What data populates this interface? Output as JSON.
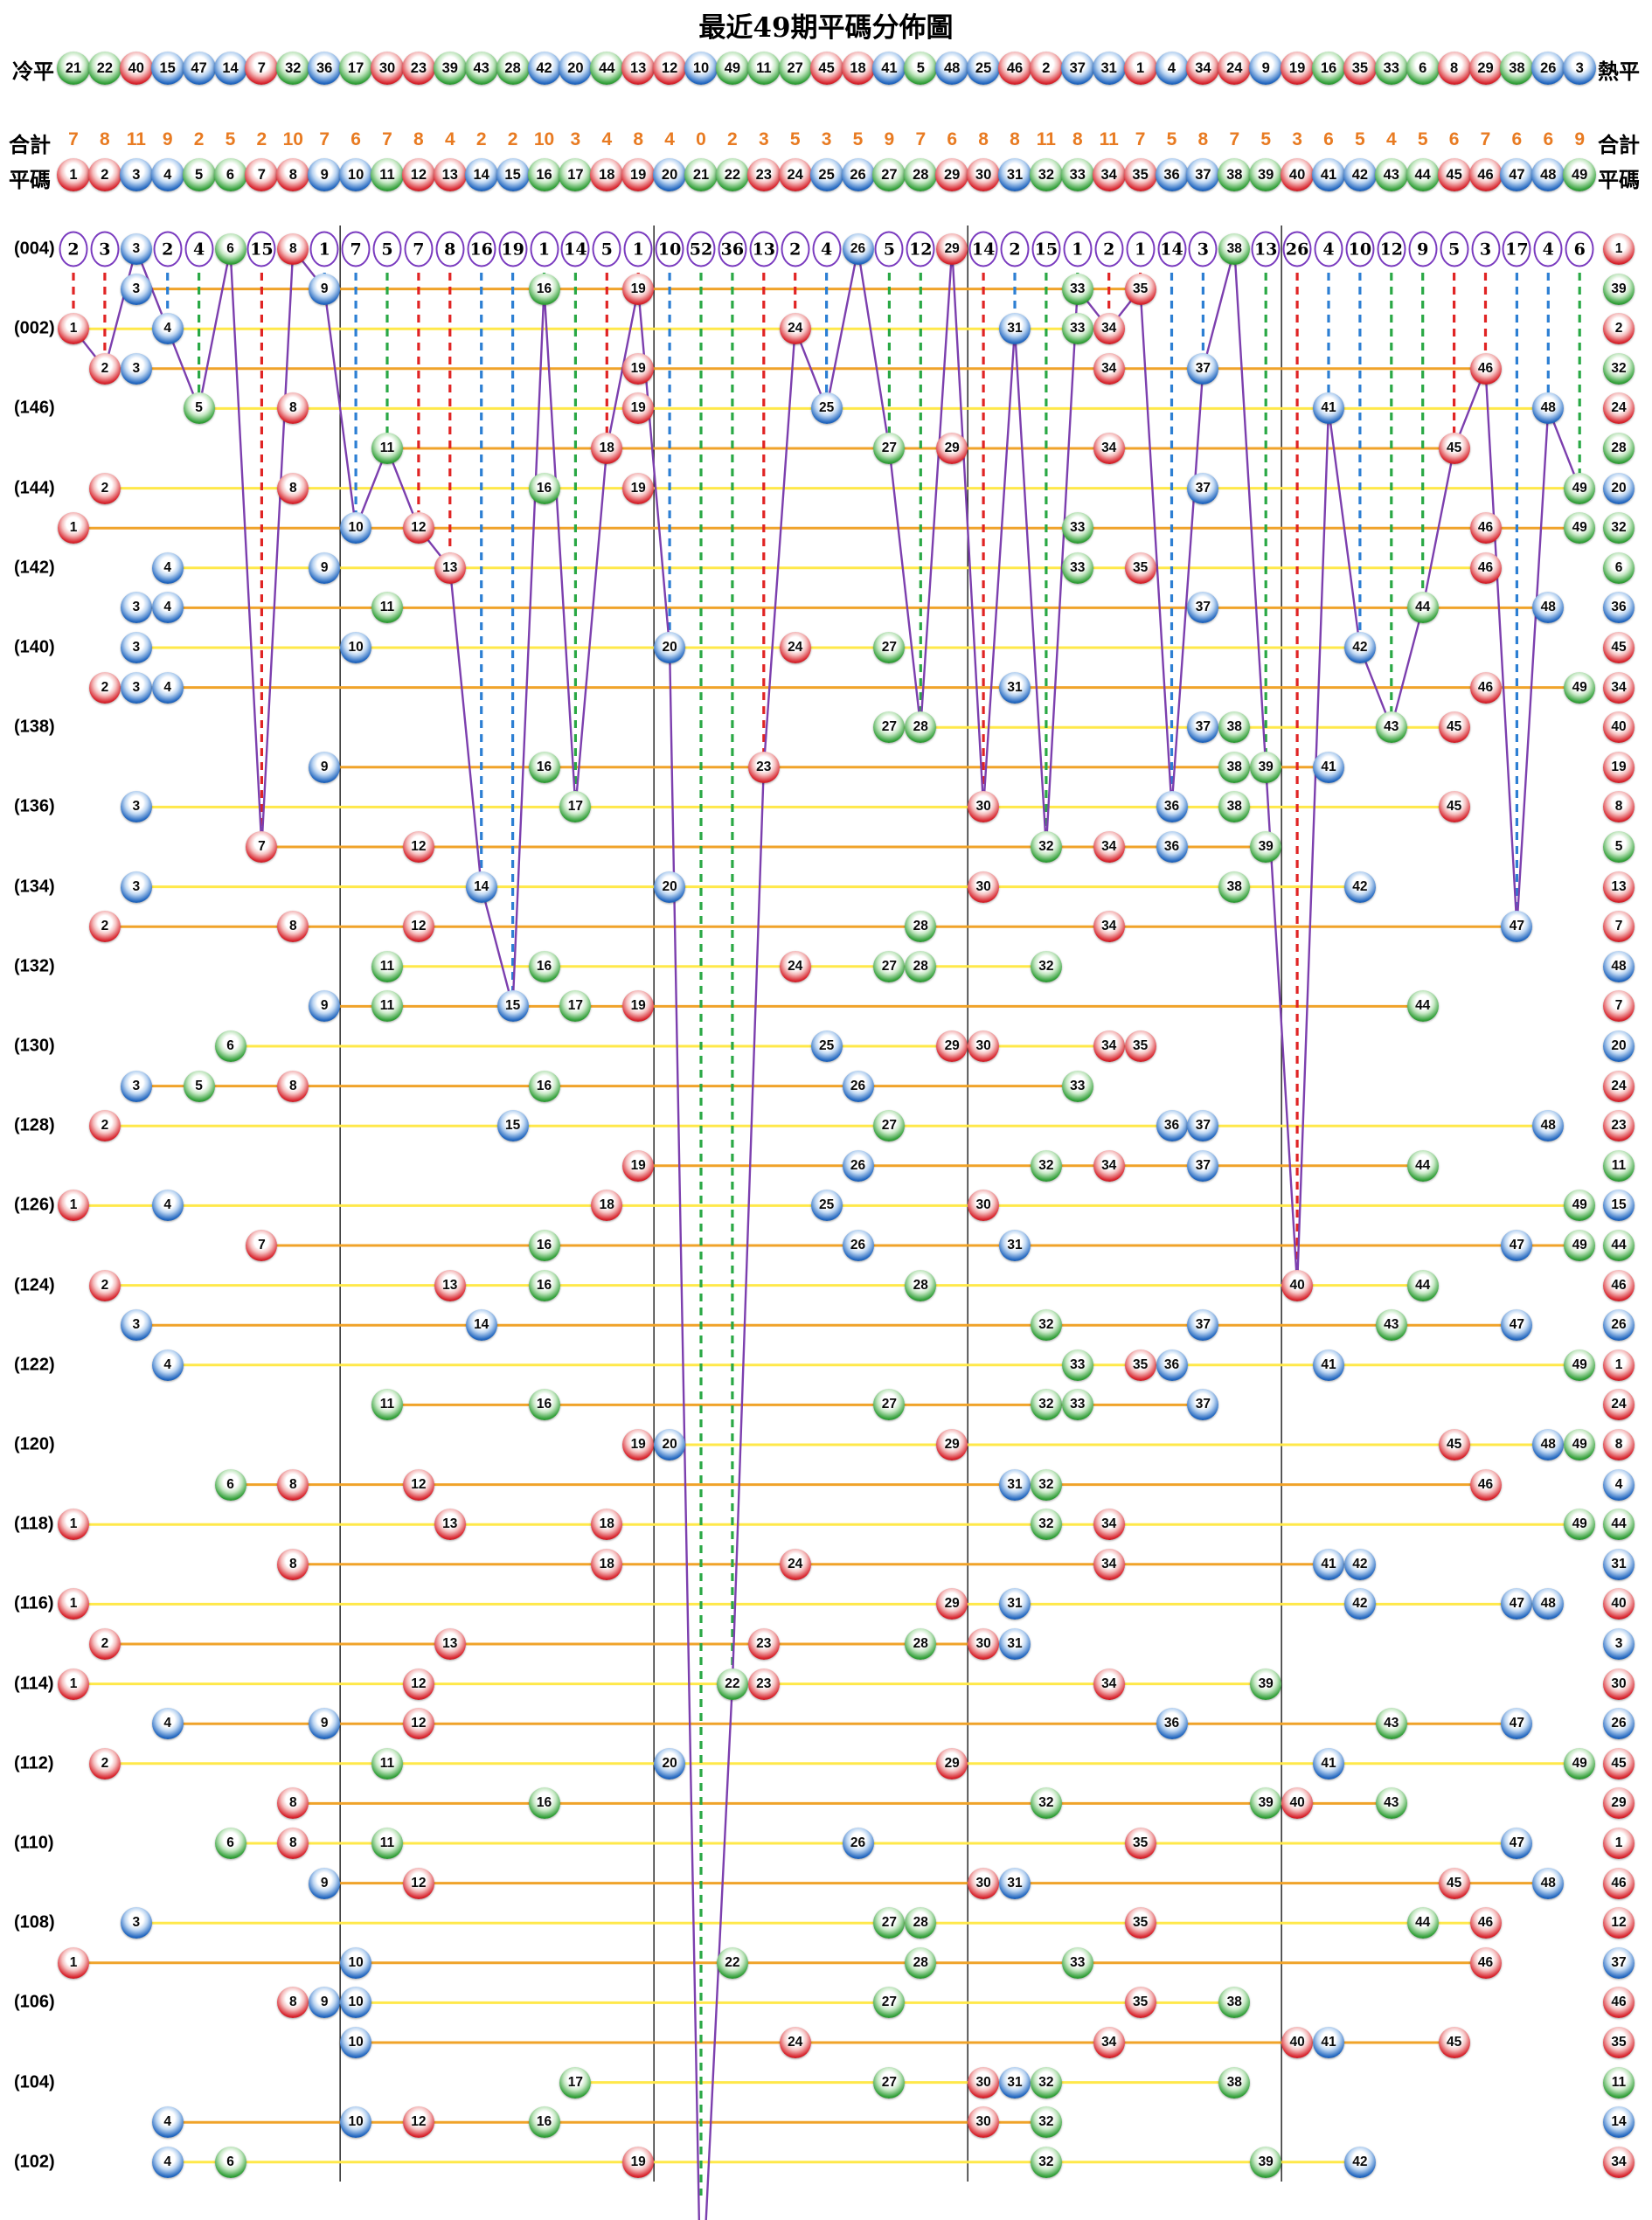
{
  "title": "最近49期平碼分佈圖",
  "header": {
    "cold_label": "冷平",
    "hot_label": "熱平",
    "total_label_left": "合計",
    "total_label_right": "合計",
    "ping_label_left": "平碼",
    "ping_label_right": "平碼"
  },
  "chart_data": {
    "type": "scatter",
    "title": "最近49期平碼分佈圖",
    "columns_range": [
      1,
      49
    ],
    "colors": {
      "balls": {
        "red": {
          "base": "#d8252e",
          "light": "#f5c0c0",
          "dark": "#7e0d12"
        },
        "blue": {
          "base": "#2468c0",
          "light": "#bdd6f2",
          "dark": "#0d3a78"
        },
        "green": {
          "base": "#33a03a",
          "light": "#c6e8c4",
          "dark": "#156018"
        }
      },
      "purple_line": "#7c3fae",
      "yellow_line": "#ffe84a",
      "orange_line": "#f0a32a",
      "totals_text": "#e87b22",
      "dash_red": "#e02424",
      "dash_blue": "#2d7fd3",
      "dash_green": "#2aa845",
      "separator": "#1a1a1a"
    },
    "ball_color_map": {
      "red": [
        1,
        2,
        7,
        8,
        12,
        13,
        18,
        19,
        23,
        24,
        29,
        30,
        34,
        35,
        40,
        45,
        46
      ],
      "blue": [
        3,
        4,
        9,
        10,
        14,
        15,
        20,
        25,
        26,
        31,
        36,
        37,
        41,
        42,
        47,
        48
      ],
      "green": [
        5,
        6,
        11,
        16,
        17,
        21,
        22,
        27,
        28,
        32,
        33,
        38,
        39,
        43,
        44,
        49
      ]
    },
    "cold_order": [
      21,
      22,
      40,
      15,
      47,
      14,
      7,
      32,
      36,
      17,
      30,
      23,
      39,
      43,
      28,
      42,
      20,
      44,
      13,
      12,
      10,
      49,
      11,
      27,
      45,
      18,
      41,
      5,
      48,
      25,
      46,
      2,
      37,
      31,
      1,
      4,
      34,
      24,
      9,
      19,
      16,
      35,
      33,
      6,
      8,
      29,
      38,
      26,
      3
    ],
    "totals": [
      7,
      8,
      11,
      9,
      2,
      5,
      2,
      10,
      7,
      6,
      7,
      8,
      4,
      2,
      2,
      10,
      3,
      4,
      8,
      4,
      0,
      2,
      3,
      5,
      3,
      5,
      9,
      7,
      6,
      8,
      8,
      11,
      8,
      11,
      7,
      5,
      8,
      7,
      5,
      3,
      6,
      5,
      4,
      5,
      6,
      7,
      6,
      6,
      9
    ],
    "miss_values": [
      2,
      3,
      3,
      2,
      4,
      6,
      15,
      8,
      1,
      7,
      5,
      7,
      8,
      16,
      19,
      1,
      14,
      5,
      1,
      10,
      52,
      36,
      13,
      2,
      4,
      26,
      5,
      12,
      29,
      14,
      2,
      15,
      1,
      2,
      1,
      14,
      3,
      38,
      13,
      26,
      4,
      10,
      12,
      9,
      5,
      3,
      17,
      4,
      6
    ],
    "rows": [
      {
        "label": "(004)",
        "balls": [
          3,
          6,
          8,
          26,
          29,
          38
        ],
        "special": 1
      },
      {
        "label": "",
        "balls": [
          3,
          9,
          16,
          19,
          33,
          35
        ],
        "special": 39
      },
      {
        "label": "(002)",
        "balls": [
          1,
          4,
          24,
          31,
          33,
          34
        ],
        "special": 2
      },
      {
        "label": "",
        "balls": [
          2,
          3,
          19,
          34,
          37,
          46
        ],
        "special": 32
      },
      {
        "label": "(146)",
        "balls": [
          5,
          8,
          19,
          25,
          41,
          48
        ],
        "special": 24
      },
      {
        "label": "",
        "balls": [
          11,
          18,
          27,
          29,
          34,
          45
        ],
        "special": 28
      },
      {
        "label": "(144)",
        "balls": [
          2,
          8,
          16,
          19,
          37,
          49
        ],
        "special": 20
      },
      {
        "label": "",
        "balls": [
          1,
          10,
          12,
          33,
          46,
          49
        ],
        "special": 32
      },
      {
        "label": "(142)",
        "balls": [
          4,
          9,
          13,
          33,
          35,
          46
        ],
        "special": 6
      },
      {
        "label": "",
        "balls": [
          3,
          4,
          11,
          37,
          44,
          48
        ],
        "special": 36
      },
      {
        "label": "(140)",
        "balls": [
          3,
          10,
          20,
          24,
          27,
          42
        ],
        "special": 45
      },
      {
        "label": "",
        "balls": [
          2,
          3,
          4,
          31,
          46,
          49
        ],
        "special": 34
      },
      {
        "label": "(138)",
        "balls": [
          27,
          28,
          37,
          38,
          43,
          45
        ],
        "special": 40
      },
      {
        "label": "",
        "balls": [
          9,
          16,
          23,
          38,
          39,
          41
        ],
        "special": 19
      },
      {
        "label": "(136)",
        "balls": [
          3,
          17,
          30,
          36,
          38,
          45
        ],
        "special": 8
      },
      {
        "label": "",
        "balls": [
          7,
          12,
          32,
          34,
          36,
          39
        ],
        "special": 5
      },
      {
        "label": "(134)",
        "balls": [
          3,
          14,
          20,
          30,
          38,
          42
        ],
        "special": 13
      },
      {
        "label": "",
        "balls": [
          2,
          8,
          12,
          28,
          34,
          47
        ],
        "special": 7
      },
      {
        "label": "(132)",
        "balls": [
          11,
          16,
          24,
          27,
          28,
          32
        ],
        "special": 48
      },
      {
        "label": "",
        "balls": [
          9,
          11,
          15,
          17,
          19,
          44
        ],
        "special": 7
      },
      {
        "label": "(130)",
        "balls": [
          6,
          25,
          29,
          30,
          34,
          35
        ],
        "special": 20
      },
      {
        "label": "",
        "balls": [
          3,
          5,
          8,
          16,
          26,
          33
        ],
        "special": 24
      },
      {
        "label": "(128)",
        "balls": [
          2,
          15,
          27,
          36,
          37,
          48
        ],
        "special": 23
      },
      {
        "label": "",
        "balls": [
          19,
          26,
          32,
          34,
          37,
          44
        ],
        "special": 11
      },
      {
        "label": "(126)",
        "balls": [
          1,
          4,
          18,
          25,
          30,
          49
        ],
        "special": 15
      },
      {
        "label": "",
        "balls": [
          7,
          16,
          26,
          31,
          47,
          49
        ],
        "special": 44
      },
      {
        "label": "(124)",
        "balls": [
          2,
          13,
          16,
          28,
          40,
          44
        ],
        "special": 46
      },
      {
        "label": "",
        "balls": [
          3,
          14,
          32,
          37,
          43,
          47
        ],
        "special": 26
      },
      {
        "label": "(122)",
        "balls": [
          4,
          33,
          35,
          36,
          41,
          49
        ],
        "special": 1
      },
      {
        "label": "",
        "balls": [
          11,
          16,
          27,
          32,
          33,
          37
        ],
        "special": 24
      },
      {
        "label": "(120)",
        "balls": [
          19,
          20,
          29,
          45,
          48,
          49
        ],
        "special": 8
      },
      {
        "label": "",
        "balls": [
          6,
          8,
          12,
          31,
          32,
          46
        ],
        "special": 4
      },
      {
        "label": "(118)",
        "balls": [
          1,
          13,
          18,
          32,
          34,
          49
        ],
        "special": 44
      },
      {
        "label": "",
        "balls": [
          8,
          18,
          24,
          34,
          41,
          42
        ],
        "special": 31
      },
      {
        "label": "(116)",
        "balls": [
          1,
          29,
          31,
          42,
          47,
          48
        ],
        "special": 40
      },
      {
        "label": "",
        "balls": [
          2,
          13,
          23,
          28,
          30,
          31
        ],
        "special": 3
      },
      {
        "label": "(114)",
        "balls": [
          1,
          12,
          22,
          23,
          34,
          39
        ],
        "special": 30
      },
      {
        "label": "",
        "balls": [
          4,
          9,
          12,
          36,
          43,
          47
        ],
        "special": 26
      },
      {
        "label": "(112)",
        "balls": [
          2,
          11,
          20,
          29,
          41,
          49
        ],
        "special": 45
      },
      {
        "label": "",
        "balls": [
          8,
          16,
          32,
          39,
          40,
          43
        ],
        "special": 29
      },
      {
        "label": "(110)",
        "balls": [
          6,
          8,
          11,
          26,
          35,
          47
        ],
        "special": 1
      },
      {
        "label": "",
        "balls": [
          9,
          12,
          30,
          31,
          45,
          48
        ],
        "special": 46
      },
      {
        "label": "(108)",
        "balls": [
          3,
          27,
          28,
          35,
          44,
          46
        ],
        "special": 12
      },
      {
        "label": "",
        "balls": [
          1,
          10,
          22,
          28,
          33,
          46
        ],
        "special": 37
      },
      {
        "label": "(106)",
        "balls": [
          8,
          9,
          10,
          27,
          35,
          38
        ],
        "special": 46
      },
      {
        "label": "",
        "balls": [
          10,
          24,
          34,
          40,
          41,
          45
        ],
        "special": 35
      },
      {
        "label": "(104)",
        "balls": [
          17,
          27,
          30,
          31,
          32,
          38
        ],
        "special": 11
      },
      {
        "label": "",
        "balls": [
          4,
          10,
          12,
          16,
          30,
          32
        ],
        "special": 14
      },
      {
        "label": "(102)",
        "balls": [
          4,
          6,
          19,
          32,
          39,
          42
        ],
        "special": 34
      }
    ],
    "layout_hints": {
      "separators_after_columns": [
        9,
        19,
        29,
        39
      ],
      "row_line_colors_alternate": [
        "yellow",
        "orange"
      ],
      "dashed_line_meaning": "miss count from top row to first appearance",
      "purple_line_meaning": "polyline through first-appearance position of every number 1-49"
    }
  }
}
